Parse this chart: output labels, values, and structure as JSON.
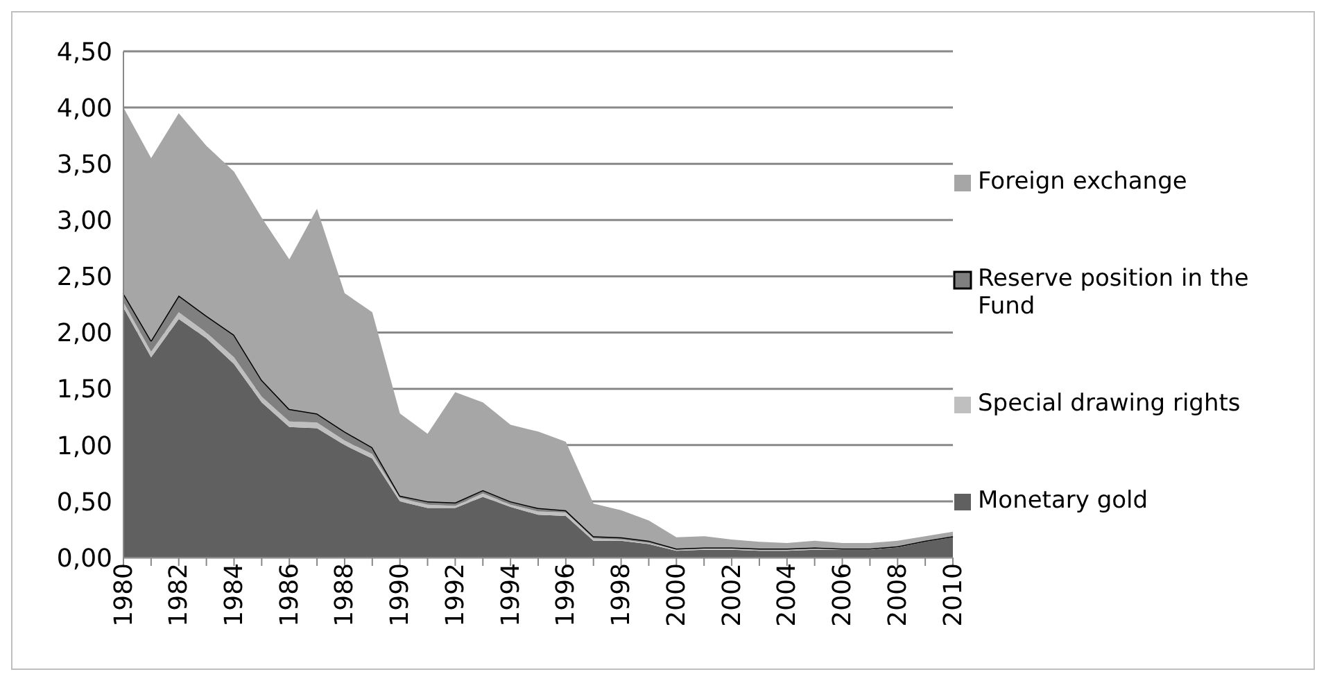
{
  "chart_data": {
    "type": "area",
    "stacked": true,
    "categories": [
      "1980",
      null,
      "1982",
      null,
      "1984",
      null,
      "1986",
      null,
      "1988",
      null,
      "1990",
      null,
      "1992",
      null,
      "1994",
      null,
      "1996",
      null,
      "1998",
      null,
      "2000",
      null,
      "2002",
      null,
      "2004",
      null,
      "2006",
      null,
      "2008",
      null,
      "2010"
    ],
    "series": [
      {
        "name": "Monetary gold",
        "color": "#606060",
        "values": [
          2.22,
          1.78,
          2.12,
          1.95,
          1.72,
          1.38,
          1.16,
          1.15,
          1.0,
          0.88,
          0.5,
          0.44,
          0.44,
          0.54,
          0.45,
          0.38,
          0.37,
          0.15,
          0.15,
          0.12,
          0.06,
          0.07,
          0.07,
          0.06,
          0.06,
          0.07,
          0.07,
          0.07,
          0.09,
          0.14,
          0.18
        ]
      },
      {
        "name": "Special drawing rights",
        "color": "#bfbfbf",
        "values": [
          0.05,
          0.05,
          0.06,
          0.05,
          0.06,
          0.05,
          0.05,
          0.05,
          0.04,
          0.04,
          0.03,
          0.03,
          0.02,
          0.03,
          0.02,
          0.03,
          0.03,
          0.02,
          0.01,
          0.01,
          0.01,
          0.01,
          0.01,
          0.01,
          0.01,
          0.01,
          0.01,
          0.01,
          0.01,
          0.01,
          0.01
        ]
      },
      {
        "name": "Reserve position in the Fund",
        "color": "#808080",
        "values": [
          0.08,
          0.1,
          0.15,
          0.15,
          0.2,
          0.15,
          0.11,
          0.08,
          0.08,
          0.06,
          0.02,
          0.03,
          0.03,
          0.03,
          0.03,
          0.03,
          0.02,
          0.02,
          0.02,
          0.02,
          0.01,
          0.01,
          0.01,
          0.01,
          0.01,
          0.01,
          0.0,
          0.0,
          0.0,
          0.0,
          0.0
        ]
      },
      {
        "name": "Foreign exchange",
        "color": "#a6a6a6",
        "values": [
          1.65,
          1.62,
          1.62,
          1.51,
          1.45,
          1.44,
          1.33,
          1.82,
          1.23,
          1.2,
          0.73,
          0.6,
          0.98,
          0.78,
          0.68,
          0.68,
          0.61,
          0.29,
          0.24,
          0.18,
          0.1,
          0.1,
          0.07,
          0.06,
          0.05,
          0.06,
          0.05,
          0.05,
          0.05,
          0.04,
          0.04
        ]
      }
    ],
    "ylim": [
      0,
      4.5
    ],
    "yticks": [
      {
        "value": 0,
        "label": "0,00"
      },
      {
        "value": 0.5,
        "label": "0,50"
      },
      {
        "value": 1,
        "label": "1,00"
      },
      {
        "value": 1.5,
        "label": "1,50"
      },
      {
        "value": 2,
        "label": "2,00"
      },
      {
        "value": 2.5,
        "label": "2,50"
      },
      {
        "value": 3,
        "label": "3,00"
      },
      {
        "value": 3.5,
        "label": "3,50"
      },
      {
        "value": 4,
        "label": "4,00"
      },
      {
        "value": 4.5,
        "label": "4,50"
      }
    ],
    "grid": "y",
    "legend": "right"
  }
}
